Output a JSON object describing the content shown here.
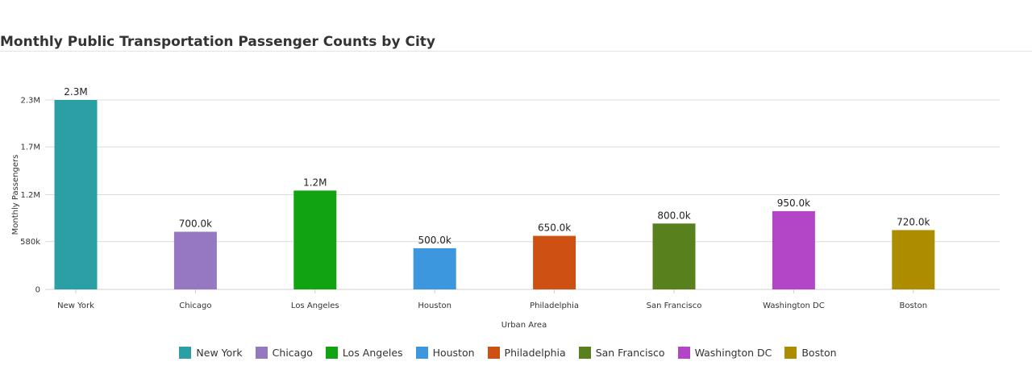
{
  "chart_data": {
    "type": "bar",
    "title": "Monthly Public Transportation Passenger Counts by City",
    "xlabel": "Urban Area",
    "ylabel": "Monthly Passengers",
    "ylim": [
      0,
      2300000
    ],
    "yticks": [
      {
        "value": 0,
        "label": "0"
      },
      {
        "value": 580000,
        "label": "580k"
      },
      {
        "value": 1150000,
        "label": "1.2M"
      },
      {
        "value": 1730000,
        "label": "1.7M"
      },
      {
        "value": 2300000,
        "label": "2.3M"
      }
    ],
    "grid": true,
    "legend_position": "bottom",
    "categories": [
      "New York",
      "Chicago",
      "Los Angeles",
      "Houston",
      "Philadelphia",
      "San Francisco",
      "Washington DC",
      "Boston"
    ],
    "values": [
      2300000,
      700000,
      1200000,
      500000,
      650000,
      800000,
      950000,
      720000
    ],
    "data_labels": [
      "2.3M",
      "700.0k",
      "1.2M",
      "500.0k",
      "650.0k",
      "800.0k",
      "950.0k",
      "720.0k"
    ],
    "colors": [
      "#2aa0a4",
      "#9677c2",
      "#12a313",
      "#3d97de",
      "#cc5112",
      "#58811e",
      "#b246c6",
      "#ae8c00"
    ]
  }
}
